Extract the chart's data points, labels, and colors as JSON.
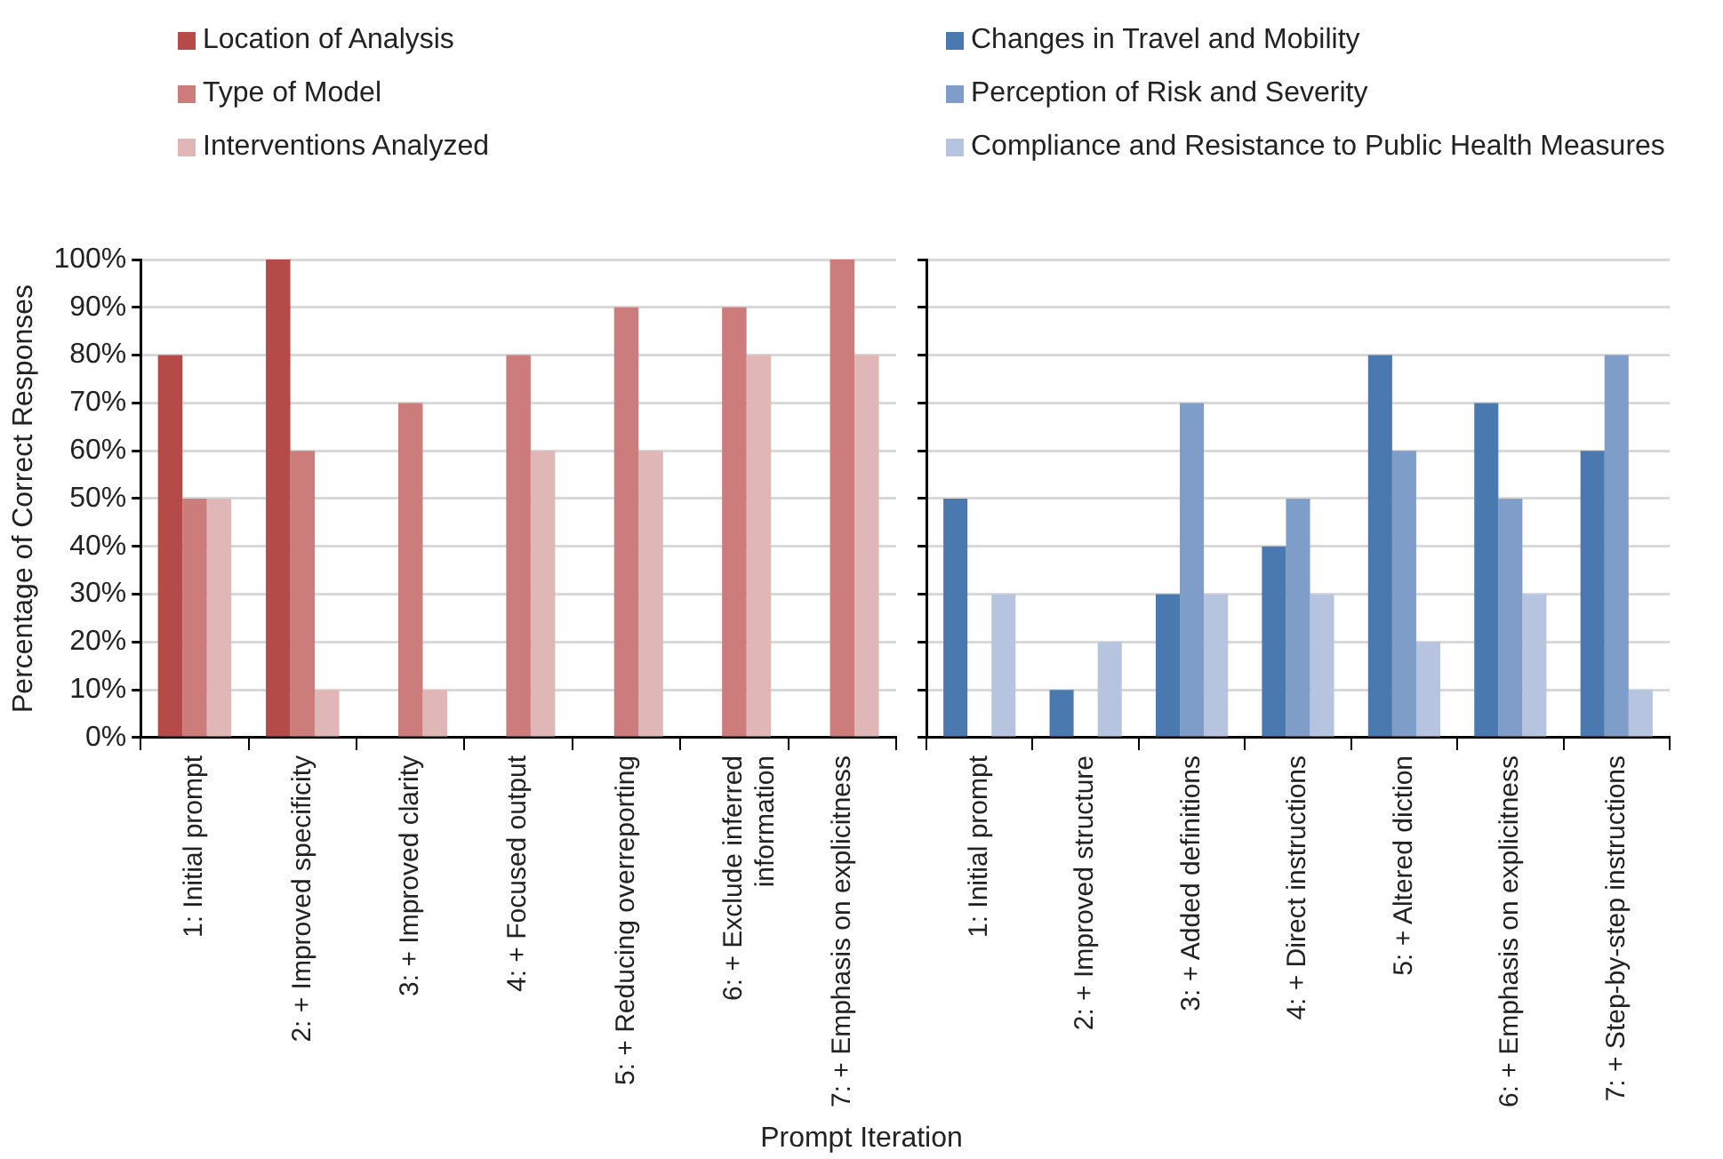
{
  "chart_data": [
    {
      "type": "bar",
      "ylabel": "Percentage of Correct Responses",
      "xlabel": "Prompt Iteration",
      "categories": [
        "1: Initial prompt",
        "2: + Improved specificity",
        "3: + Improved clarity",
        "4: + Focused output",
        "5: + Reducing overreporting",
        "6: + Exclude inferred information",
        "7: + Emphasis on explicitness"
      ],
      "series": [
        {
          "name": "Location of Analysis",
          "color": "#b54b48",
          "values": [
            80,
            100,
            0,
            0,
            0,
            0,
            0
          ]
        },
        {
          "name": "Type of Model",
          "color": "#cc7d7b",
          "values": [
            50,
            60,
            70,
            80,
            90,
            90,
            100
          ]
        },
        {
          "name": "Interventions Analyzed",
          "color": "#e0b7b6",
          "values": [
            50,
            10,
            10,
            60,
            60,
            80,
            80
          ]
        }
      ],
      "ylim": [
        0,
        100
      ],
      "yticks": [
        {
          "value": 0,
          "label": "0%"
        },
        {
          "value": 10,
          "label": "10%"
        },
        {
          "value": 20,
          "label": "20%"
        },
        {
          "value": 30,
          "label": "30%"
        },
        {
          "value": 40,
          "label": "40%"
        },
        {
          "value": 50,
          "label": "50%"
        },
        {
          "value": 60,
          "label": "60%"
        },
        {
          "value": 70,
          "label": "70%"
        },
        {
          "value": 80,
          "label": "80%"
        },
        {
          "value": 90,
          "label": "90%"
        },
        {
          "value": 100,
          "label": "100%"
        }
      ],
      "grid": "y",
      "legend": "top left"
    },
    {
      "type": "bar",
      "categories": [
        "1: Initial prompt",
        "2: + Improved structure",
        "3: + Added definitions",
        "4: + Direct instructions",
        "5: + Altered diction",
        "6: + Emphasis on explicitness",
        "7: + Step-by-step instructions"
      ],
      "series": [
        {
          "name": "Changes in Travel and Mobility",
          "color": "#4a79b0",
          "values": [
            50,
            10,
            30,
            40,
            80,
            70,
            60
          ]
        },
        {
          "name": "Perception of Risk and Severity",
          "color": "#7f9dc9",
          "values": [
            0,
            0,
            70,
            50,
            60,
            50,
            80
          ]
        },
        {
          "name": "Compliance and Resistance to Public Health Measures",
          "color": "#b6c4df",
          "values": [
            30,
            20,
            30,
            30,
            20,
            30,
            10
          ]
        }
      ],
      "ylim": [
        0,
        100
      ],
      "yticks": [
        {
          "value": 0,
          "label": null
        },
        {
          "value": 10,
          "label": null
        },
        {
          "value": 20,
          "label": null
        },
        {
          "value": 30,
          "label": null
        },
        {
          "value": 40,
          "label": null
        },
        {
          "value": 50,
          "label": null
        },
        {
          "value": 60,
          "label": null
        },
        {
          "value": 70,
          "label": null
        },
        {
          "value": 80,
          "label": null
        },
        {
          "value": 90,
          "label": null
        },
        {
          "value": 100,
          "label": null
        }
      ],
      "grid": "y",
      "legend": "top left",
      "tick_labels": "x"
    }
  ]
}
